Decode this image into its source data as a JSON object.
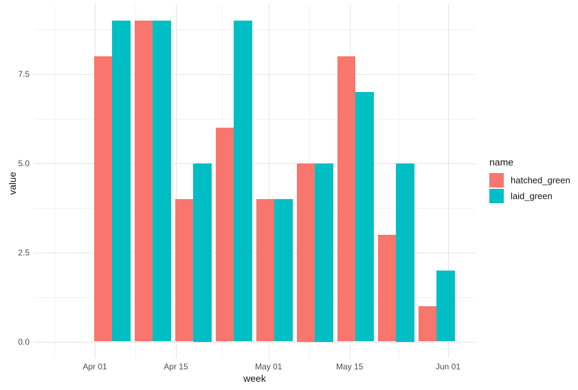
{
  "figure": {
    "background_color": "#ffffff",
    "grid_major_color": "#e4e4e4",
    "grid_minor_color": "#f1f1f1",
    "tick_text_color": "#4d4d4d",
    "title_text_color": "#141414"
  },
  "chart_data": {
    "type": "bar",
    "title": "",
    "xlabel": "week",
    "ylabel": "value",
    "legend_title": "name",
    "legend_position": "right",
    "grid": "major+minor",
    "x_axis": {
      "tick_labels": [
        "Apr 01",
        "Apr 15",
        "May 01",
        "May 15",
        "Jun 01"
      ],
      "tick_day_offsets": [
        0,
        14,
        30,
        44,
        61
      ],
      "minor_gridline_day_offsets": [
        -7,
        7,
        22,
        37,
        52.5
      ]
    },
    "y_axis": {
      "tick_labels": [
        "0.0",
        "2.5",
        "5.0",
        "7.5"
      ],
      "tick_values": [
        0,
        2.5,
        5,
        7.5
      ],
      "minor_gridline_values": [
        1.25,
        3.75,
        6.25,
        8.75
      ],
      "ylim": [
        -0.45,
        9.45
      ]
    },
    "group_week_day_offsets": [
      3,
      10,
      17,
      24,
      31,
      38,
      45,
      52,
      59
    ],
    "series": [
      {
        "name": "hatched_green",
        "color": "#F8766D",
        "values": [
          8,
          9,
          4,
          6,
          4,
          5,
          8,
          3,
          1
        ]
      },
      {
        "name": "laid_green",
        "color": "#00BFC4",
        "values": [
          9,
          9,
          5,
          9,
          4,
          5,
          7,
          5,
          2
        ]
      }
    ]
  }
}
